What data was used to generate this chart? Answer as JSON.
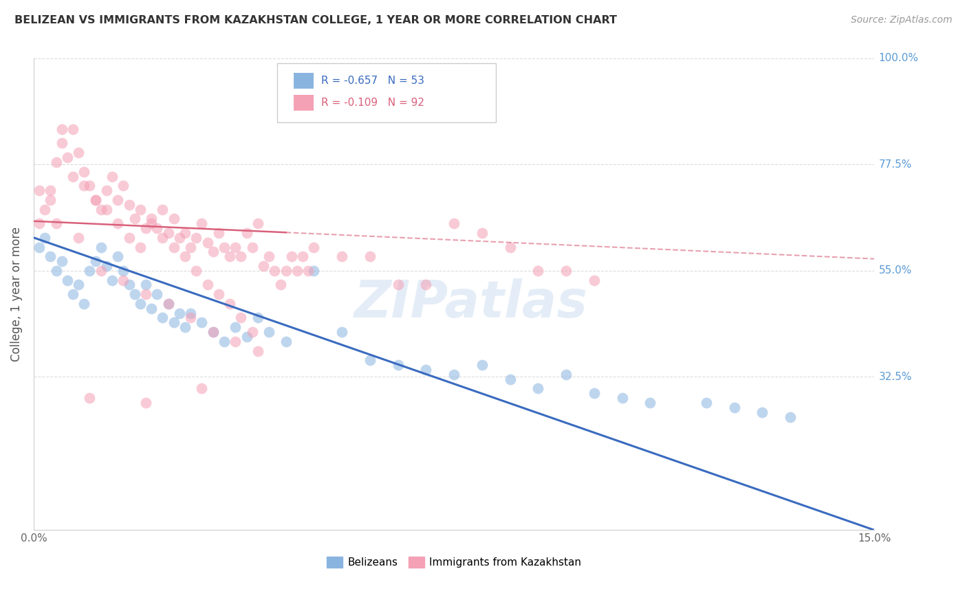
{
  "title": "BELIZEAN VS IMMIGRANTS FROM KAZAKHSTAN COLLEGE, 1 YEAR OR MORE CORRELATION CHART",
  "source": "Source: ZipAtlas.com",
  "ylabel": "College, 1 year or more",
  "xlim": [
    0.0,
    0.15
  ],
  "ylim": [
    0.0,
    1.0
  ],
  "yticks_right": [
    1.0,
    0.775,
    0.55,
    0.325
  ],
  "ytick_right_labels": [
    "100.0%",
    "77.5%",
    "55.0%",
    "32.5%"
  ],
  "xticks": [
    0.0,
    0.025,
    0.05,
    0.075,
    0.1,
    0.125,
    0.15
  ],
  "legend_r1": "R = -0.657",
  "legend_n1": "N = 53",
  "legend_r2": "R = -0.109",
  "legend_n2": "N = 92",
  "color_blue": "#8ab4e0",
  "color_pink": "#f4a0b5",
  "color_blue_line": "#3a6bbf",
  "color_pink_line": "#d9607a",
  "color_right_axis": "#5b9bd5",
  "background_color": "#ffffff",
  "grid_color": "#cccccc",
  "watermark": "ZIPatlas",
  "blue_line_x": [
    0.0,
    0.15
  ],
  "blue_line_y": [
    0.62,
    0.0
  ],
  "pink_line_x": [
    0.0,
    0.15
  ],
  "pink_line_y": [
    0.655,
    0.575
  ],
  "blue_scatter_x": [
    0.001,
    0.002,
    0.003,
    0.004,
    0.005,
    0.006,
    0.007,
    0.008,
    0.009,
    0.01,
    0.011,
    0.012,
    0.013,
    0.014,
    0.015,
    0.016,
    0.017,
    0.018,
    0.019,
    0.02,
    0.021,
    0.022,
    0.023,
    0.024,
    0.025,
    0.026,
    0.027,
    0.028,
    0.03,
    0.032,
    0.034,
    0.036,
    0.038,
    0.04,
    0.042,
    0.045,
    0.05,
    0.055,
    0.06,
    0.065,
    0.07,
    0.075,
    0.08,
    0.085,
    0.09,
    0.095,
    0.1,
    0.105,
    0.11,
    0.12,
    0.125,
    0.13,
    0.135
  ],
  "blue_scatter_y": [
    0.6,
    0.62,
    0.58,
    0.55,
    0.57,
    0.53,
    0.5,
    0.52,
    0.48,
    0.55,
    0.57,
    0.6,
    0.56,
    0.53,
    0.58,
    0.55,
    0.52,
    0.5,
    0.48,
    0.52,
    0.47,
    0.5,
    0.45,
    0.48,
    0.44,
    0.46,
    0.43,
    0.46,
    0.44,
    0.42,
    0.4,
    0.43,
    0.41,
    0.45,
    0.42,
    0.4,
    0.55,
    0.42,
    0.36,
    0.35,
    0.34,
    0.33,
    0.35,
    0.32,
    0.3,
    0.33,
    0.29,
    0.28,
    0.27,
    0.27,
    0.26,
    0.25,
    0.24
  ],
  "pink_scatter_x": [
    0.001,
    0.002,
    0.003,
    0.004,
    0.005,
    0.006,
    0.007,
    0.008,
    0.009,
    0.01,
    0.011,
    0.012,
    0.013,
    0.014,
    0.015,
    0.016,
    0.017,
    0.018,
    0.019,
    0.02,
    0.021,
    0.022,
    0.023,
    0.024,
    0.025,
    0.026,
    0.027,
    0.028,
    0.029,
    0.03,
    0.031,
    0.032,
    0.033,
    0.034,
    0.035,
    0.036,
    0.037,
    0.038,
    0.039,
    0.04,
    0.041,
    0.042,
    0.043,
    0.044,
    0.045,
    0.046,
    0.047,
    0.048,
    0.049,
    0.05,
    0.055,
    0.06,
    0.065,
    0.07,
    0.075,
    0.08,
    0.085,
    0.09,
    0.095,
    0.1,
    0.001,
    0.003,
    0.005,
    0.007,
    0.009,
    0.011,
    0.013,
    0.015,
    0.017,
    0.019,
    0.021,
    0.023,
    0.025,
    0.027,
    0.029,
    0.031,
    0.033,
    0.035,
    0.037,
    0.039,
    0.004,
    0.008,
    0.012,
    0.016,
    0.02,
    0.024,
    0.028,
    0.032,
    0.036,
    0.04,
    0.01,
    0.02,
    0.03
  ],
  "pink_scatter_y": [
    0.65,
    0.68,
    0.72,
    0.78,
    0.82,
    0.79,
    0.85,
    0.8,
    0.76,
    0.73,
    0.7,
    0.68,
    0.72,
    0.75,
    0.7,
    0.73,
    0.69,
    0.66,
    0.68,
    0.64,
    0.66,
    0.64,
    0.68,
    0.63,
    0.66,
    0.62,
    0.63,
    0.6,
    0.62,
    0.65,
    0.61,
    0.59,
    0.63,
    0.6,
    0.58,
    0.6,
    0.58,
    0.63,
    0.6,
    0.65,
    0.56,
    0.58,
    0.55,
    0.52,
    0.55,
    0.58,
    0.55,
    0.58,
    0.55,
    0.6,
    0.58,
    0.58,
    0.52,
    0.52,
    0.65,
    0.63,
    0.6,
    0.55,
    0.55,
    0.53,
    0.72,
    0.7,
    0.85,
    0.75,
    0.73,
    0.7,
    0.68,
    0.65,
    0.62,
    0.6,
    0.65,
    0.62,
    0.6,
    0.58,
    0.55,
    0.52,
    0.5,
    0.48,
    0.45,
    0.42,
    0.65,
    0.62,
    0.55,
    0.53,
    0.5,
    0.48,
    0.45,
    0.42,
    0.4,
    0.38,
    0.28,
    0.27,
    0.3
  ]
}
